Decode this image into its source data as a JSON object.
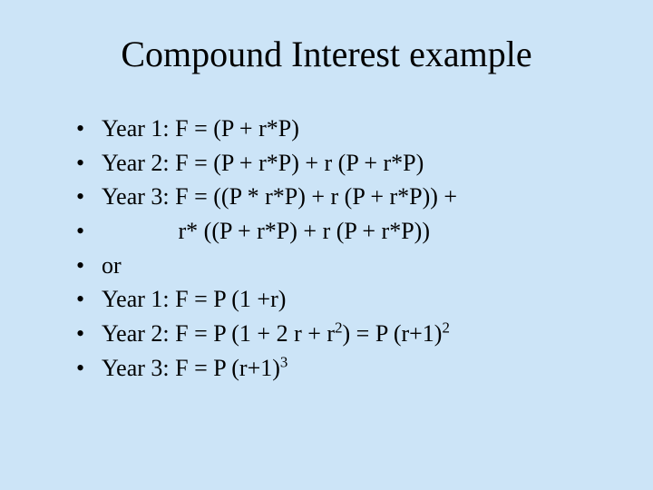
{
  "background_color": "#cce4f7",
  "text_color": "#000000",
  "font_family": "Times New Roman",
  "title": {
    "text": "Compound Interest example",
    "fontsize": 40
  },
  "bullets": {
    "fontsize": 26,
    "items": [
      {
        "html": "Year 1:  F = (P + r*P)"
      },
      {
        "html": "Year 2:  F = (P + r*P) + r (P + r*P)"
      },
      {
        "html": "Year 3: F = ((P * r*P) + r (P + r*P)) +"
      },
      {
        "html": "&nbsp;&nbsp;&nbsp;&nbsp;&nbsp;&nbsp;&nbsp;&nbsp;&nbsp;&nbsp;&nbsp;&nbsp;&nbsp;r* ((P + r*P) + r (P + r*P))"
      },
      {
        "html": "or"
      },
      {
        "html": "Year 1: F = P (1 +r)"
      },
      {
        "html": "Year 2: F = P (1 + 2 r + r<sup>2</sup>) = P (r+1)<sup>2</sup>"
      },
      {
        "html": "Year 3: F = P (r+1)<sup>3</sup>"
      }
    ]
  }
}
